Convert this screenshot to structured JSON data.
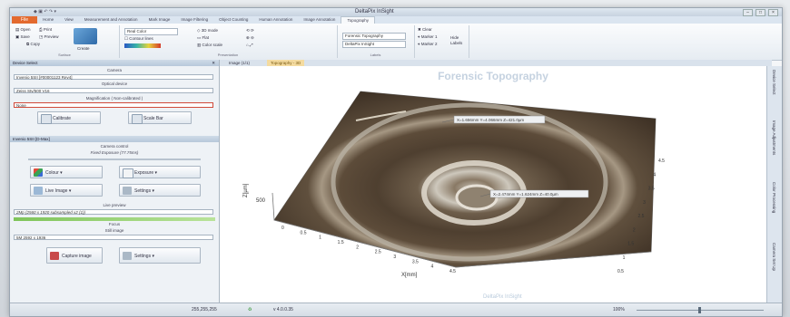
{
  "window": {
    "title": "DeltaPix InSight"
  },
  "ribbon_tabs": [
    "File",
    "Home",
    "View",
    "Measurement and Annotation",
    "Mark Image",
    "Image Filtering",
    "Object Counting",
    "Human Annotation",
    "Image Annotation",
    "Topography"
  ],
  "ribbon": {
    "file_group": {
      "open": "Open",
      "print": "Print",
      "save": "Save",
      "preview": "Preview",
      "copy": "Copy",
      "label": "Surface"
    },
    "create": {
      "label": "Create"
    },
    "color_combo": "Real Color",
    "contour_lines": "Contour lines",
    "mid_label": "Presentation",
    "grid_items": [
      "3D mode",
      "Flat",
      "Color scale"
    ],
    "name_box": "Forensic Topography",
    "name_box2": "DeltaPix InSight",
    "labels_label": "Labels",
    "clear": "Clear",
    "marker1": "Marker 1",
    "marker2": "Marker 2",
    "hide_label": "Hide",
    "reset_label": "Labels"
  },
  "side": {
    "device_header": "Device Select",
    "camera_label": "Camera",
    "camera_value": "Invenio 5SII [#00001123 Rev4]",
    "optical_label": "Optical device",
    "optical_value": "Zeiss Stv/500 V16",
    "mag_label": "Magnification ( Non-calibrated )",
    "mag_value": "None",
    "calibrate": "Calibrate",
    "scale_bar": "Scale Bar",
    "cam_header": "Invenio 5SII [D-Max]",
    "camera_control": "Camera control",
    "fixed_exposure": "Fixed Exposure (77.75ms)",
    "colour": "Colour",
    "exposure": "Exposure",
    "live_image": "Live Image",
    "settings": "Settings",
    "live_preview": "Live preview",
    "preview_value": "2Mp (2560 x 1920 subsampled x2 (1))",
    "focus": "Focus",
    "still_image": "Still image",
    "still_value": "5M 2592 x 1936",
    "capture": "Capture image",
    "settings2": "Settings"
  },
  "doc_tabs": [
    "Image (1/1)",
    "Topography - 3D"
  ],
  "right_tabs": [
    "Device Select",
    "Image Adjustments",
    "Color Processing",
    "Camera Set Up"
  ],
  "status": {
    "rgb": "255,255,255",
    "version": "v 4.0.0.35",
    "zoom": "100%"
  },
  "chart_data": {
    "type": "surface-3d",
    "title": "Forensic Topography",
    "footer": "DeltaPix InSight",
    "x_label": "X[mm]",
    "x_ticks": [
      "0",
      "0.5",
      "1",
      "1.5",
      "2",
      "2.5",
      "3",
      "3.5",
      "4",
      "4.5"
    ],
    "y_ticks": [
      "0.5",
      "1",
      "1.5",
      "2",
      "2.5",
      "3",
      "3.5",
      "4",
      "4.5"
    ],
    "z_label": "Z[µm]",
    "z_ticks": [
      "500"
    ],
    "annotations": [
      "X=1.656mm Y=4.066mm Z=421.0µm",
      "X=2.474mm Y=1.624mm Z=40.0µm"
    ]
  }
}
